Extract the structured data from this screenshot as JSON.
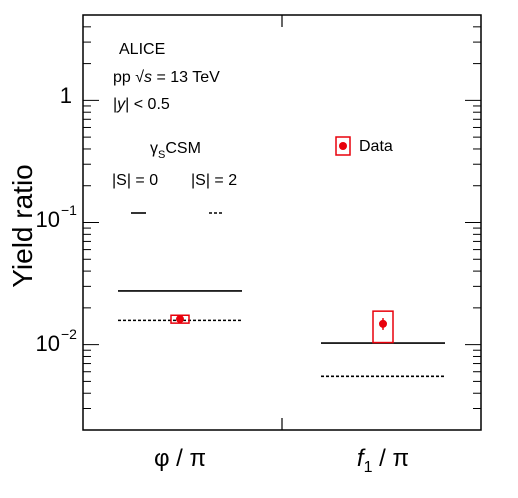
{
  "chart_data": {
    "type": "scatter",
    "ylabel": "Yield ratio",
    "yscale": "log",
    "ylim": [
      0.002,
      5
    ],
    "categories": [
      "φ / π",
      "f₁ / π"
    ],
    "category_label_parts": [
      {
        "main": "φ / π",
        "sub": "",
        "rest": ""
      },
      {
        "main": "f",
        "sub": "1",
        "rest": " / π"
      }
    ],
    "y_ticks": [
      {
        "value": 0.01,
        "base": "10",
        "exp": "−2"
      },
      {
        "value": 0.1,
        "base": "10",
        "exp": "−1"
      },
      {
        "value": 1,
        "base": "1",
        "exp": ""
      }
    ],
    "annotations": {
      "experiment": "ALICE",
      "system_pre": "pp ",
      "system_sqrt": "√",
      "system_s": "s",
      "system_post": " = 13 TeV",
      "rapidity_pre": "|",
      "rapidity_y": "y",
      "rapidity_post": "| < 0.5",
      "model_gamma": "γ",
      "model_sub": "S",
      "model_name": "CSM",
      "s0_label": "|S| = 0",
      "s2_label": "|S| = 2"
    },
    "series": [
      {
        "name": "Data",
        "type": "points",
        "color": "#e8000b",
        "values": [
          0.0162,
          0.0148
        ],
        "stat_err_low": [
          0.0157,
          0.0132
        ],
        "stat_err_high": [
          0.0167,
          0.0165
        ],
        "sys_low": [
          0.015,
          0.0104
        ],
        "sys_high": [
          0.0174,
          0.0188
        ]
      },
      {
        "name": "|S| = 0",
        "type": "model",
        "style": "solid",
        "color": "#000000",
        "values": [
          0.0275,
          0.0103
        ]
      },
      {
        "name": "|S| = 2",
        "type": "model",
        "style": "dashed",
        "color": "#000000",
        "values": [
          0.0158,
          0.0055
        ]
      }
    ],
    "legend": {
      "position": "top-right",
      "entries": [
        "Data"
      ]
    },
    "grid": false
  }
}
